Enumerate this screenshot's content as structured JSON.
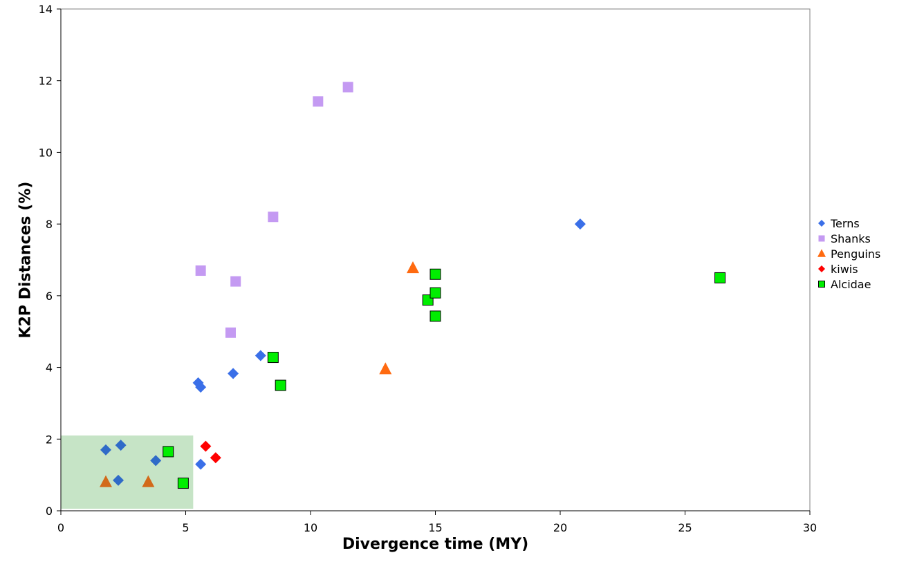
{
  "chart_data": {
    "type": "scatter",
    "xlabel": "Divergence time (MY)",
    "ylabel": "K2P Distances (%)",
    "xlim": [
      0,
      30
    ],
    "ylim": [
      0,
      14
    ],
    "xticks": [
      0,
      5,
      10,
      15,
      20,
      25,
      30
    ],
    "yticks": [
      0,
      2,
      4,
      6,
      8,
      10,
      12,
      14
    ],
    "grid": false,
    "legend_position": "right",
    "highlight_region": {
      "x": [
        0,
        5.3
      ],
      "y": [
        0,
        2.1
      ],
      "color": "#c6e4c6"
    },
    "series": [
      {
        "name": "Terns",
        "marker": "diamond",
        "color": "#3a6fe8",
        "points": [
          [
            1.8,
            1.7
          ],
          [
            2.4,
            1.83
          ],
          [
            2.3,
            0.85
          ],
          [
            3.8,
            1.4
          ],
          [
            5.6,
            1.3
          ],
          [
            5.5,
            3.57
          ],
          [
            5.6,
            3.45
          ],
          [
            6.9,
            3.83
          ],
          [
            8.0,
            4.33
          ],
          [
            20.8,
            8.0
          ]
        ]
      },
      {
        "name": "Shanks",
        "marker": "square",
        "color": "#c49af2",
        "points": [
          [
            5.6,
            6.7
          ],
          [
            7.0,
            6.4
          ],
          [
            6.8,
            4.97
          ],
          [
            8.5,
            8.2
          ],
          [
            10.3,
            11.42
          ],
          [
            11.5,
            11.82
          ]
        ]
      },
      {
        "name": "Penguins",
        "marker": "triangle",
        "color": "#ff6a10",
        "points": [
          [
            1.8,
            0.8
          ],
          [
            3.5,
            0.8
          ],
          [
            13.0,
            3.95
          ],
          [
            14.1,
            6.77
          ]
        ]
      },
      {
        "name": "kiwis",
        "marker": "diamond",
        "color": "#ff0000",
        "points": [
          [
            5.8,
            1.8
          ],
          [
            6.2,
            1.48
          ]
        ]
      },
      {
        "name": "Alcidae",
        "marker": "square-outlined",
        "color": "#00ee00",
        "points": [
          [
            4.3,
            1.65
          ],
          [
            4.9,
            0.77
          ],
          [
            8.5,
            4.28
          ],
          [
            8.8,
            3.5
          ],
          [
            14.7,
            5.88
          ],
          [
            15.0,
            6.6
          ],
          [
            15.0,
            6.08
          ],
          [
            15.0,
            5.43
          ],
          [
            26.4,
            6.5
          ]
        ]
      }
    ]
  }
}
